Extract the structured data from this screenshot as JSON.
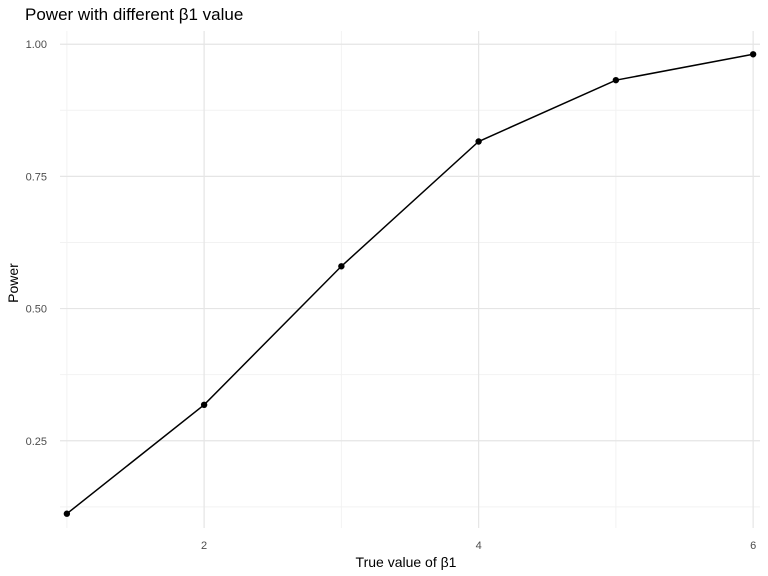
{
  "chart_data": {
    "type": "line",
    "title": "Power with different β1 value",
    "xlabel": "True value of β1",
    "ylabel": "Power",
    "x": [
      1,
      2,
      3,
      4,
      5,
      6
    ],
    "series": [
      {
        "values": [
          0.112,
          0.318,
          0.58,
          0.816,
          0.932,
          0.981
        ]
      }
    ],
    "xlim": [
      0.95,
      6.05
    ],
    "ylim": [
      0.085,
      1.025
    ],
    "x_ticks": [
      2,
      4,
      6
    ],
    "x_tick_labels": [
      "2",
      "4",
      "6"
    ],
    "y_ticks": [
      0.25,
      0.5,
      0.75,
      1.0
    ],
    "y_tick_labels": [
      "0.25",
      "0.50",
      "0.75",
      "1.00"
    ],
    "grid": true,
    "legend": "none",
    "colors": {
      "line": "#000000",
      "point": "#000000",
      "grid_major": "#e5e5e5",
      "grid_minor": "#f2f2f2"
    }
  }
}
